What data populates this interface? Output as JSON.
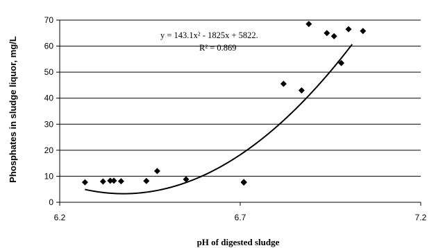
{
  "chart_data": {
    "type": "scatter",
    "xlabel": "pH of digested sludge",
    "ylabel": "Phosphates in sludge liquor, mg/L",
    "xlim": [
      6.2,
      7.2
    ],
    "ylim": [
      0,
      70
    ],
    "xticks": [
      6.2,
      6.7,
      7.2
    ],
    "xtick_labels": [
      "6.2",
      "6.7",
      "7.2"
    ],
    "yticks": [
      0,
      10,
      20,
      30,
      40,
      50,
      60,
      70
    ],
    "ytick_labels": [
      "0",
      "10",
      "20",
      "30",
      "40",
      "50",
      "60",
      "70"
    ],
    "grid": "horizontal",
    "legend": "none",
    "marker": "diamond",
    "marker_color": "#000000",
    "series": [
      {
        "x": [
          6.27,
          6.32,
          6.34,
          6.35,
          6.37,
          6.44,
          6.47,
          6.55,
          6.71,
          6.71,
          6.82,
          6.87,
          6.89,
          6.94,
          6.96,
          6.98,
          7.0,
          7.04
        ],
        "y": [
          7.7,
          8.0,
          8.3,
          8.3,
          8.1,
          8.2,
          12.0,
          8.8,
          7.8,
          7.6,
          45.5,
          43.0,
          68.5,
          65.0,
          63.8,
          53.5,
          66.5,
          65.8
        ]
      }
    ],
    "trendline": {
      "type": "polynomial",
      "coefficients": [
        143.1,
        -1825,
        5822
      ],
      "x_range": [
        6.27,
        7.01
      ],
      "color": "#000000"
    },
    "annotation": {
      "equation": "y = 143.1x² - 1825x + 5822.",
      "r_squared": "R² = 0.869"
    }
  }
}
